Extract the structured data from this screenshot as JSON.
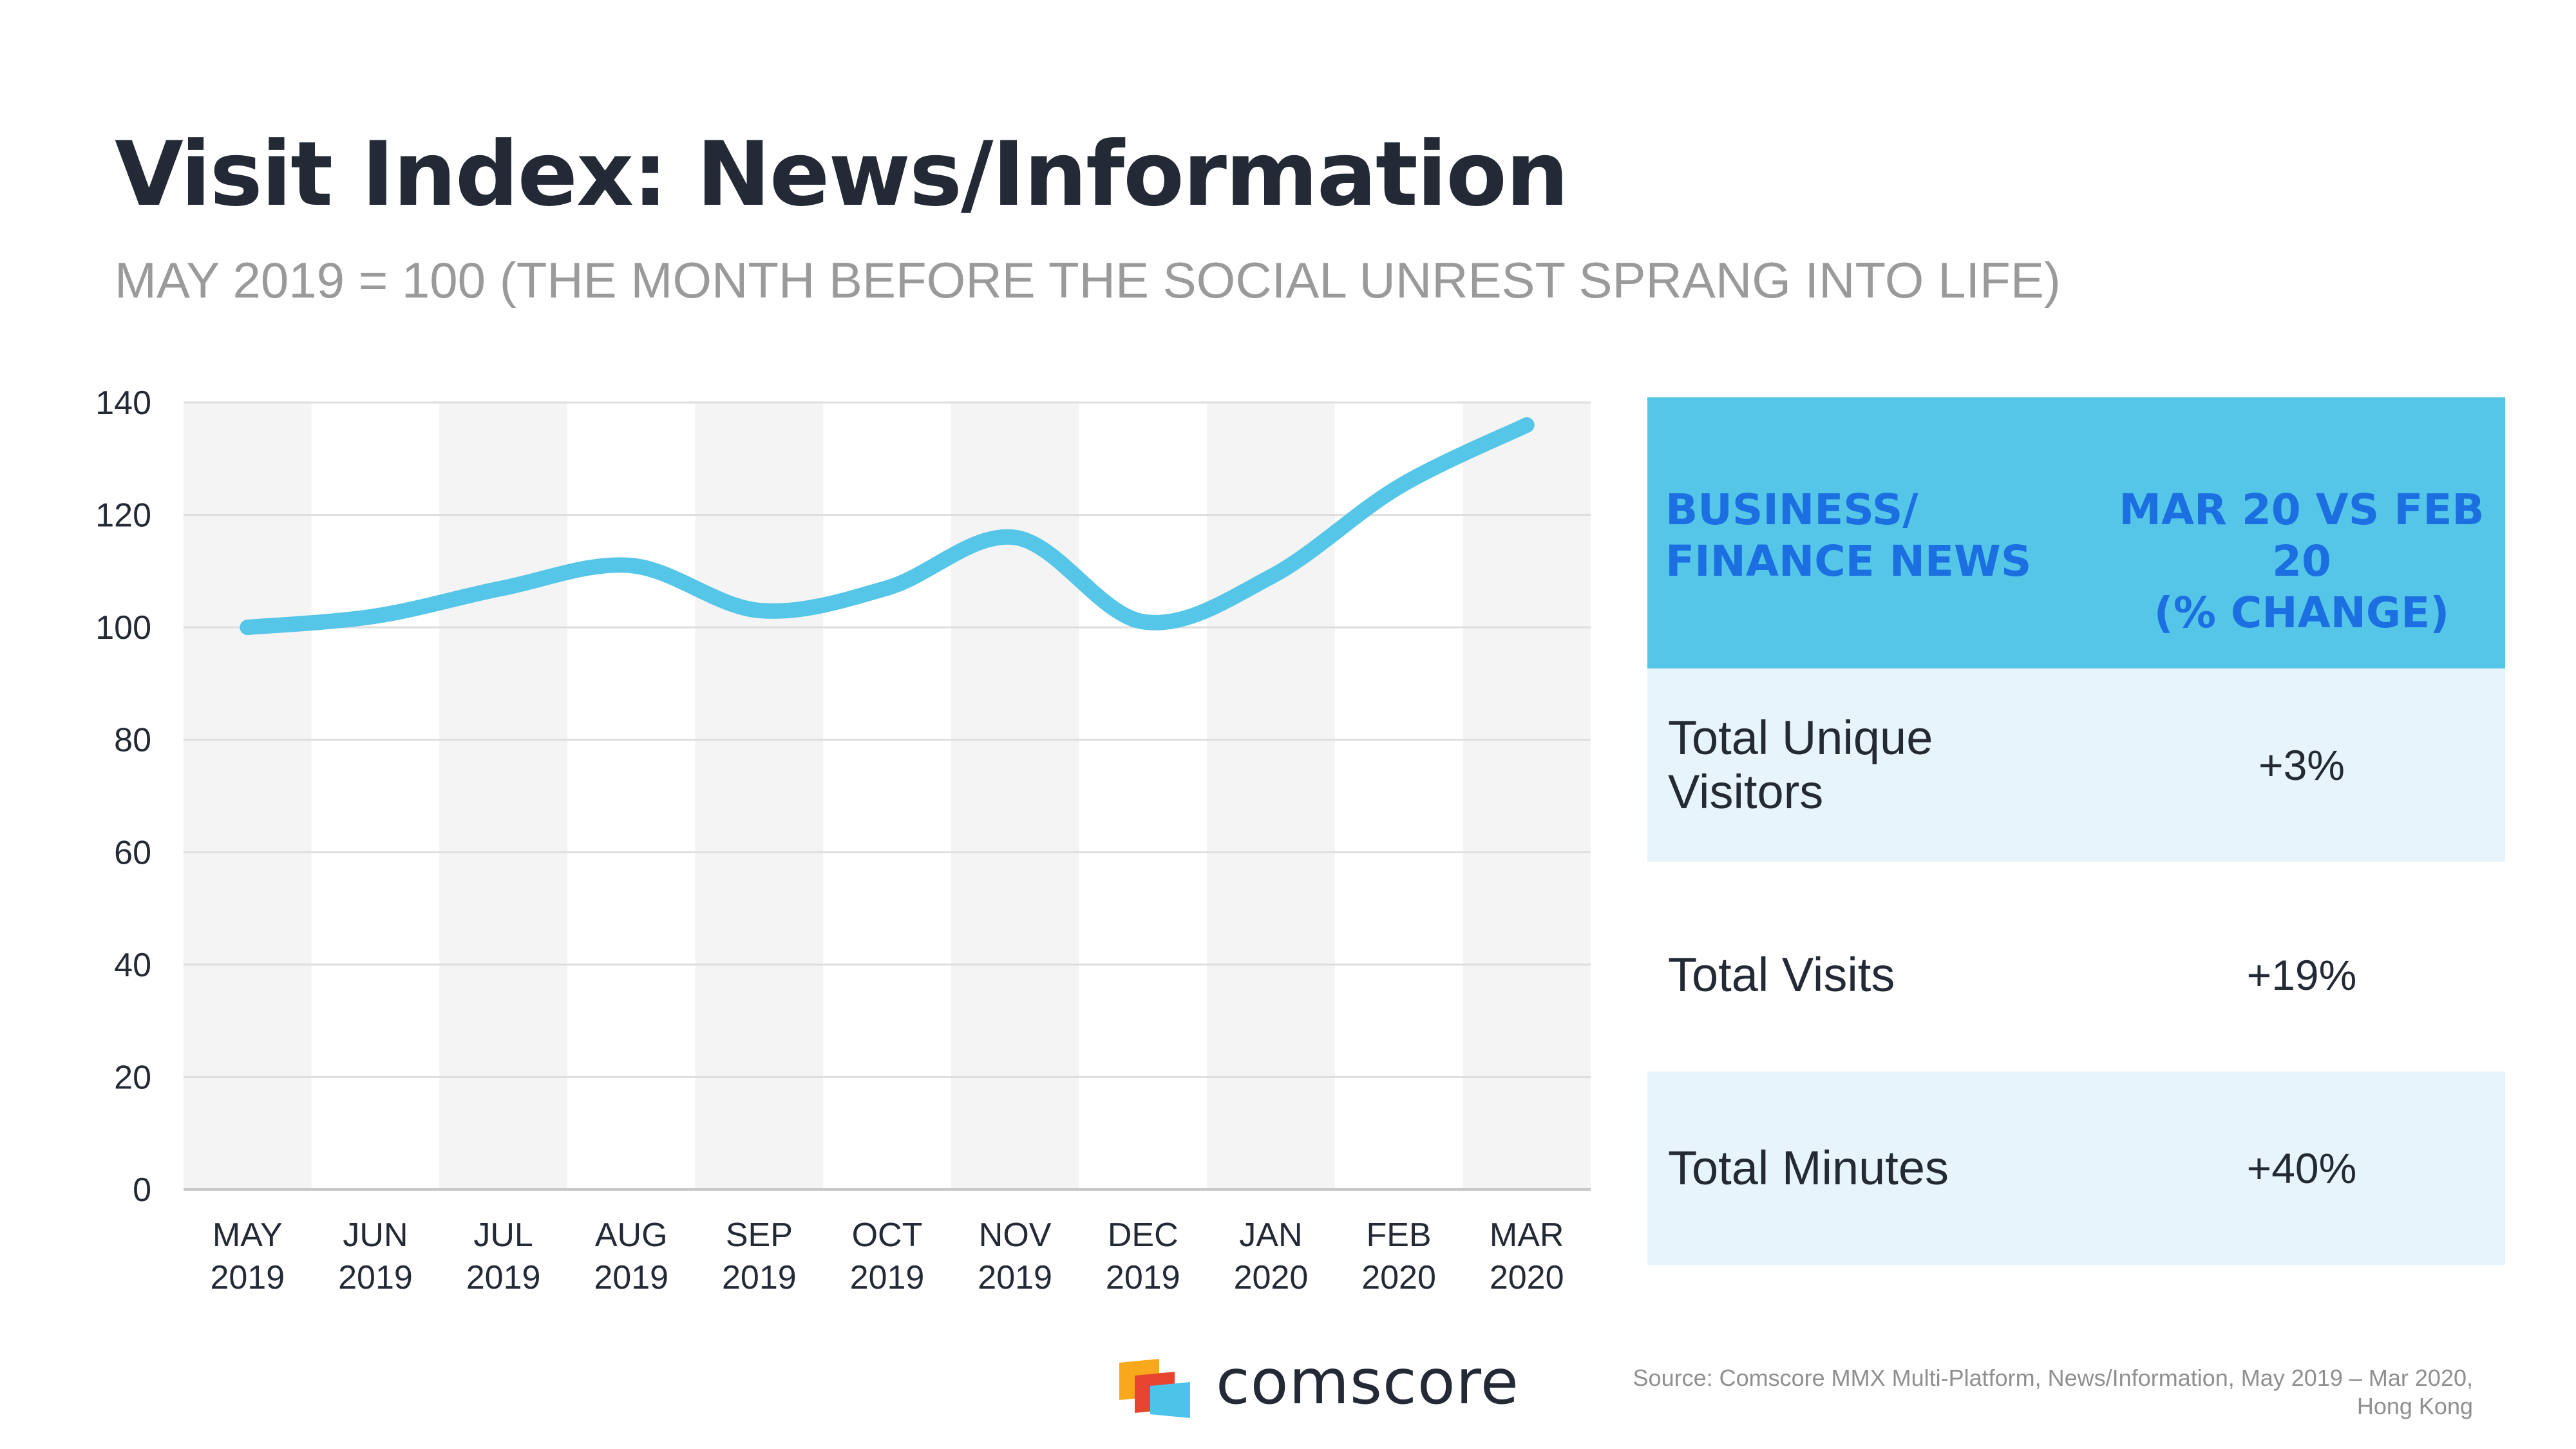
{
  "slide": {
    "title": "Visit Index: News/Information",
    "subtitle": "MAY 2019 = 100  (THE MONTH BEFORE THE SOCIAL UNREST SPRANG INTO LIFE)"
  },
  "chart_data": {
    "type": "line",
    "categories": [
      "MAY 2019",
      "JUN 2019",
      "JUL 2019",
      "AUG 2019",
      "SEP 2019",
      "OCT 2019",
      "NOV 2019",
      "DEC 2019",
      "JAN 2020",
      "FEB 2020",
      "MAR 2020"
    ],
    "series": [
      {
        "values": [
          100,
          102,
          107,
          111,
          103,
          107,
          116,
          101,
          109,
          125,
          136
        ]
      }
    ],
    "yticks": [
      0,
      20,
      40,
      60,
      80,
      100,
      120,
      140
    ],
    "ylim": [
      0,
      140
    ],
    "grid": true,
    "alternating_column_bands": true,
    "line_color": "#55c5e8",
    "band_color": "#f4f4f4"
  },
  "table": {
    "header_left": "BUSINESS/\nFINANCE NEWS",
    "header_right": "MAR 20 VS FEB 20\n(% CHANGE)",
    "rows": [
      {
        "label": "Total Unique Visitors",
        "value": "+3%"
      },
      {
        "label": "Total Visits",
        "value": "+19%"
      },
      {
        "label": "Total Minutes",
        "value": "+40%"
      }
    ],
    "header_color": "#55c5e8",
    "header_text_color": "#1b6fe0",
    "row_shade_color": "#e7f4fb"
  },
  "footer": {
    "brand": "comscore",
    "logo_icon": "comscore-logo-icon",
    "source": "Source: Comscore MMX Multi-Platform, News/Information, May 2019 – Mar 2020, Hong Kong"
  }
}
